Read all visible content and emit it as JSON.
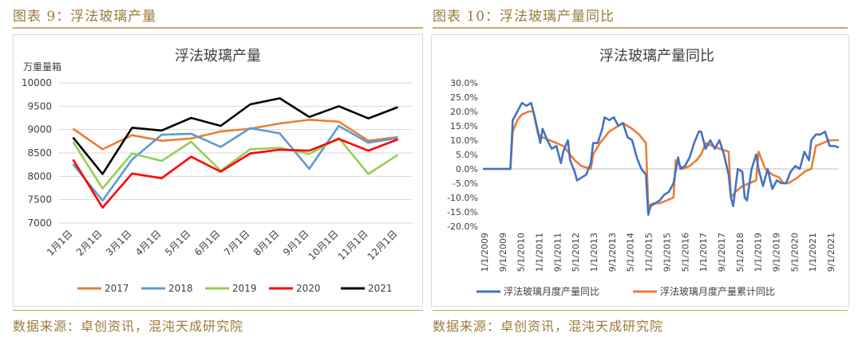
{
  "left": {
    "caption": "图表 9：浮法玻璃产量",
    "source": "数据来源：卓创资讯，混沌天成研究院"
  },
  "right": {
    "caption": "图表 10：浮法玻璃产量同比",
    "source": "数据来源：卓创资讯，混沌天成研究院"
  },
  "colors": {
    "accent": "#9b7a3a",
    "rule": "#c8a86a"
  },
  "chart_data": [
    {
      "type": "line",
      "title": "浮法玻璃产量",
      "unit_label": "万重量箱",
      "categories": [
        "1月1日",
        "2月1日",
        "3月1日",
        "4月1日",
        "5月1日",
        "6月1日",
        "7月1日",
        "8月1日",
        "9月1日",
        "10月1日",
        "11月1日",
        "12月1日"
      ],
      "ylim": [
        7000,
        10000
      ],
      "yticks": [
        7000,
        7500,
        8000,
        8500,
        9000,
        9500,
        10000
      ],
      "grid": true,
      "legend_position": "bottom",
      "series": [
        {
          "name": "2017",
          "color": "#ed7d31",
          "values": [
            9020,
            8580,
            8880,
            8760,
            8810,
            8960,
            9020,
            9130,
            9210,
            9170,
            8760,
            8840
          ]
        },
        {
          "name": "2018",
          "color": "#5b9bd5",
          "values": [
            8260,
            7480,
            8360,
            8890,
            8910,
            8630,
            9030,
            8920,
            8160,
            9080,
            8720,
            8820
          ]
        },
        {
          "name": "2019",
          "color": "#92d050",
          "values": [
            8740,
            7740,
            8490,
            8330,
            8740,
            8120,
            8580,
            8610,
            8480,
            8820,
            8050,
            8460
          ]
        },
        {
          "name": "2020",
          "color": "#ff0000",
          "values": [
            8360,
            7330,
            8060,
            7960,
            8420,
            8100,
            8490,
            8570,
            8550,
            8800,
            8550,
            8790
          ]
        },
        {
          "name": "2021",
          "color": "#000000",
          "values": [
            8830,
            8050,
            9040,
            8980,
            9250,
            9080,
            9540,
            9670,
            9270,
            9500,
            9240,
            9480
          ]
        }
      ]
    },
    {
      "type": "line",
      "title": "浮法玻璃产量同比",
      "ylim": [
        -0.2,
        0.3
      ],
      "yticks": [
        "30.0%",
        "25.0%",
        "20.0%",
        "15.0%",
        "10.0%",
        "5.0%",
        "0.0%",
        "-5.0%",
        "-10.0%",
        "-15.0%",
        "-20.0%"
      ],
      "x_tick_labels": [
        "1/1/2009",
        "9/1/2009",
        "5/1/2010",
        "1/1/2011",
        "9/1/2011",
        "5/1/2012",
        "1/1/2013",
        "9/1/2013",
        "5/1/2014",
        "1/1/2015",
        "9/1/2015",
        "5/1/2016",
        "1/1/2017",
        "9/1/2017",
        "5/1/2018",
        "1/1/2019",
        "9/1/2019",
        "5/1/2020",
        "1/1/2021",
        "9/1/2021"
      ],
      "x_start": "2009-01",
      "x_end": "2021-12",
      "legend_position": "bottom",
      "series": [
        {
          "name": "浮法玻璃月度产量同比",
          "color": "#4472c4",
          "points": [
            [
              "2009-01",
              0
            ],
            [
              "2009-06",
              0
            ],
            [
              "2010-01",
              0
            ],
            [
              "2010-02",
              0.17
            ],
            [
              "2010-04",
              0.2
            ],
            [
              "2010-06",
              0.23
            ],
            [
              "2010-08",
              0.22
            ],
            [
              "2010-10",
              0.23
            ],
            [
              "2010-11",
              0.2
            ],
            [
              "2011-01",
              0.13
            ],
            [
              "2011-02",
              0.09
            ],
            [
              "2011-03",
              0.14
            ],
            [
              "2011-05",
              0.1
            ],
            [
              "2011-07",
              0.07
            ],
            [
              "2011-09",
              0.08
            ],
            [
              "2011-11",
              0.02
            ],
            [
              "2011-12",
              0.06
            ],
            [
              "2012-02",
              0.1
            ],
            [
              "2012-03",
              0.03
            ],
            [
              "2012-05",
              -0.01
            ],
            [
              "2012-06",
              -0.04
            ],
            [
              "2012-08",
              -0.03
            ],
            [
              "2012-10",
              -0.02
            ],
            [
              "2012-12",
              0.02
            ],
            [
              "2013-01",
              0.09
            ],
            [
              "2013-03",
              0.09
            ],
            [
              "2013-05",
              0.14
            ],
            [
              "2013-06",
              0.18
            ],
            [
              "2013-08",
              0.17
            ],
            [
              "2013-10",
              0.18
            ],
            [
              "2013-12",
              0.15
            ],
            [
              "2014-02",
              0.16
            ],
            [
              "2014-04",
              0.11
            ],
            [
              "2014-06",
              0.1
            ],
            [
              "2014-08",
              0.04
            ],
            [
              "2014-10",
              0.0
            ],
            [
              "2014-12",
              -0.02
            ],
            [
              "2015-01",
              -0.16
            ],
            [
              "2015-02",
              -0.13
            ],
            [
              "2015-04",
              -0.12
            ],
            [
              "2015-06",
              -0.11
            ],
            [
              "2015-08",
              -0.09
            ],
            [
              "2015-10",
              -0.08
            ],
            [
              "2015-12",
              -0.05
            ],
            [
              "2016-02",
              0.04
            ],
            [
              "2016-03",
              0.0
            ],
            [
              "2016-05",
              0.01
            ],
            [
              "2016-07",
              0.04
            ],
            [
              "2016-09",
              0.09
            ],
            [
              "2016-11",
              0.13
            ],
            [
              "2016-12",
              0.13
            ],
            [
              "2017-02",
              0.07
            ],
            [
              "2017-04",
              0.1
            ],
            [
              "2017-06",
              0.07
            ],
            [
              "2017-08",
              0.1
            ],
            [
              "2017-10",
              0.05
            ],
            [
              "2017-12",
              -0.02
            ],
            [
              "2018-01",
              -0.1
            ],
            [
              "2018-02",
              -0.13
            ],
            [
              "2018-04",
              0.0
            ],
            [
              "2018-06",
              -0.01
            ],
            [
              "2018-07",
              -0.1
            ],
            [
              "2018-08",
              -0.11
            ],
            [
              "2018-10",
              0.0
            ],
            [
              "2018-12",
              0.05
            ],
            [
              "2019-01",
              0.0
            ],
            [
              "2019-03",
              -0.06
            ],
            [
              "2019-05",
              0.0
            ],
            [
              "2019-07",
              -0.07
            ],
            [
              "2019-09",
              -0.04
            ],
            [
              "2019-11",
              -0.05
            ],
            [
              "2020-01",
              -0.05
            ],
            [
              "2020-03",
              -0.01
            ],
            [
              "2020-05",
              0.01
            ],
            [
              "2020-07",
              0.0
            ],
            [
              "2020-09",
              0.06
            ],
            [
              "2020-11",
              0.03
            ],
            [
              "2020-12",
              0.1
            ],
            [
              "2021-02",
              0.12
            ],
            [
              "2021-04",
              0.12
            ],
            [
              "2021-06",
              0.13
            ],
            [
              "2021-08",
              0.08
            ],
            [
              "2021-10",
              0.08
            ],
            [
              "2021-12",
              0.075
            ]
          ]
        },
        {
          "name": "浮法玻璃月度产量累计同比",
          "color": "#ed7d31",
          "points": [
            [
              "2009-01",
              0
            ],
            [
              "2009-06",
              0
            ],
            [
              "2010-01",
              0
            ],
            [
              "2010-02",
              0.13
            ],
            [
              "2010-04",
              0.17
            ],
            [
              "2010-06",
              0.19
            ],
            [
              "2010-09",
              0.2
            ],
            [
              "2010-11",
              0.2
            ],
            [
              "2011-01",
              0.12
            ],
            [
              "2011-03",
              0.11
            ],
            [
              "2011-06",
              0.1
            ],
            [
              "2011-09",
              0.09
            ],
            [
              "2011-12",
              0.08
            ],
            [
              "2012-02",
              0.06
            ],
            [
              "2012-05",
              0.03
            ],
            [
              "2012-08",
              0.01
            ],
            [
              "2012-12",
              0.0
            ],
            [
              "2013-01",
              0.05
            ],
            [
              "2013-04",
              0.09
            ],
            [
              "2013-08",
              0.13
            ],
            [
              "2013-12",
              0.15
            ],
            [
              "2014-02",
              0.16
            ],
            [
              "2014-06",
              0.14
            ],
            [
              "2014-09",
              0.12
            ],
            [
              "2014-12",
              0.09
            ],
            [
              "2015-01",
              -0.13
            ],
            [
              "2015-03",
              -0.12
            ],
            [
              "2015-06",
              -0.12
            ],
            [
              "2015-09",
              -0.11
            ],
            [
              "2015-12",
              -0.1
            ],
            [
              "2016-01",
              0.03
            ],
            [
              "2016-04",
              0.0
            ],
            [
              "2016-07",
              0.01
            ],
            [
              "2016-10",
              0.03
            ],
            [
              "2016-12",
              0.05
            ],
            [
              "2017-02",
              0.09
            ],
            [
              "2017-05",
              0.08
            ],
            [
              "2017-08",
              0.07
            ],
            [
              "2017-12",
              0.06
            ],
            [
              "2018-01",
              -0.1
            ],
            [
              "2018-03",
              -0.08
            ],
            [
              "2018-06",
              -0.06
            ],
            [
              "2018-09",
              -0.05
            ],
            [
              "2018-12",
              -0.04
            ],
            [
              "2019-01",
              0.06
            ],
            [
              "2019-04",
              0.0
            ],
            [
              "2019-07",
              -0.02
            ],
            [
              "2019-10",
              -0.03
            ],
            [
              "2019-12",
              -0.05
            ],
            [
              "2020-02",
              -0.05
            ],
            [
              "2020-06",
              -0.03
            ],
            [
              "2020-09",
              -0.01
            ],
            [
              "2020-12",
              0.0
            ],
            [
              "2021-02",
              0.08
            ],
            [
              "2021-05",
              0.09
            ],
            [
              "2021-08",
              0.1
            ],
            [
              "2021-12",
              0.1
            ]
          ]
        }
      ]
    }
  ]
}
